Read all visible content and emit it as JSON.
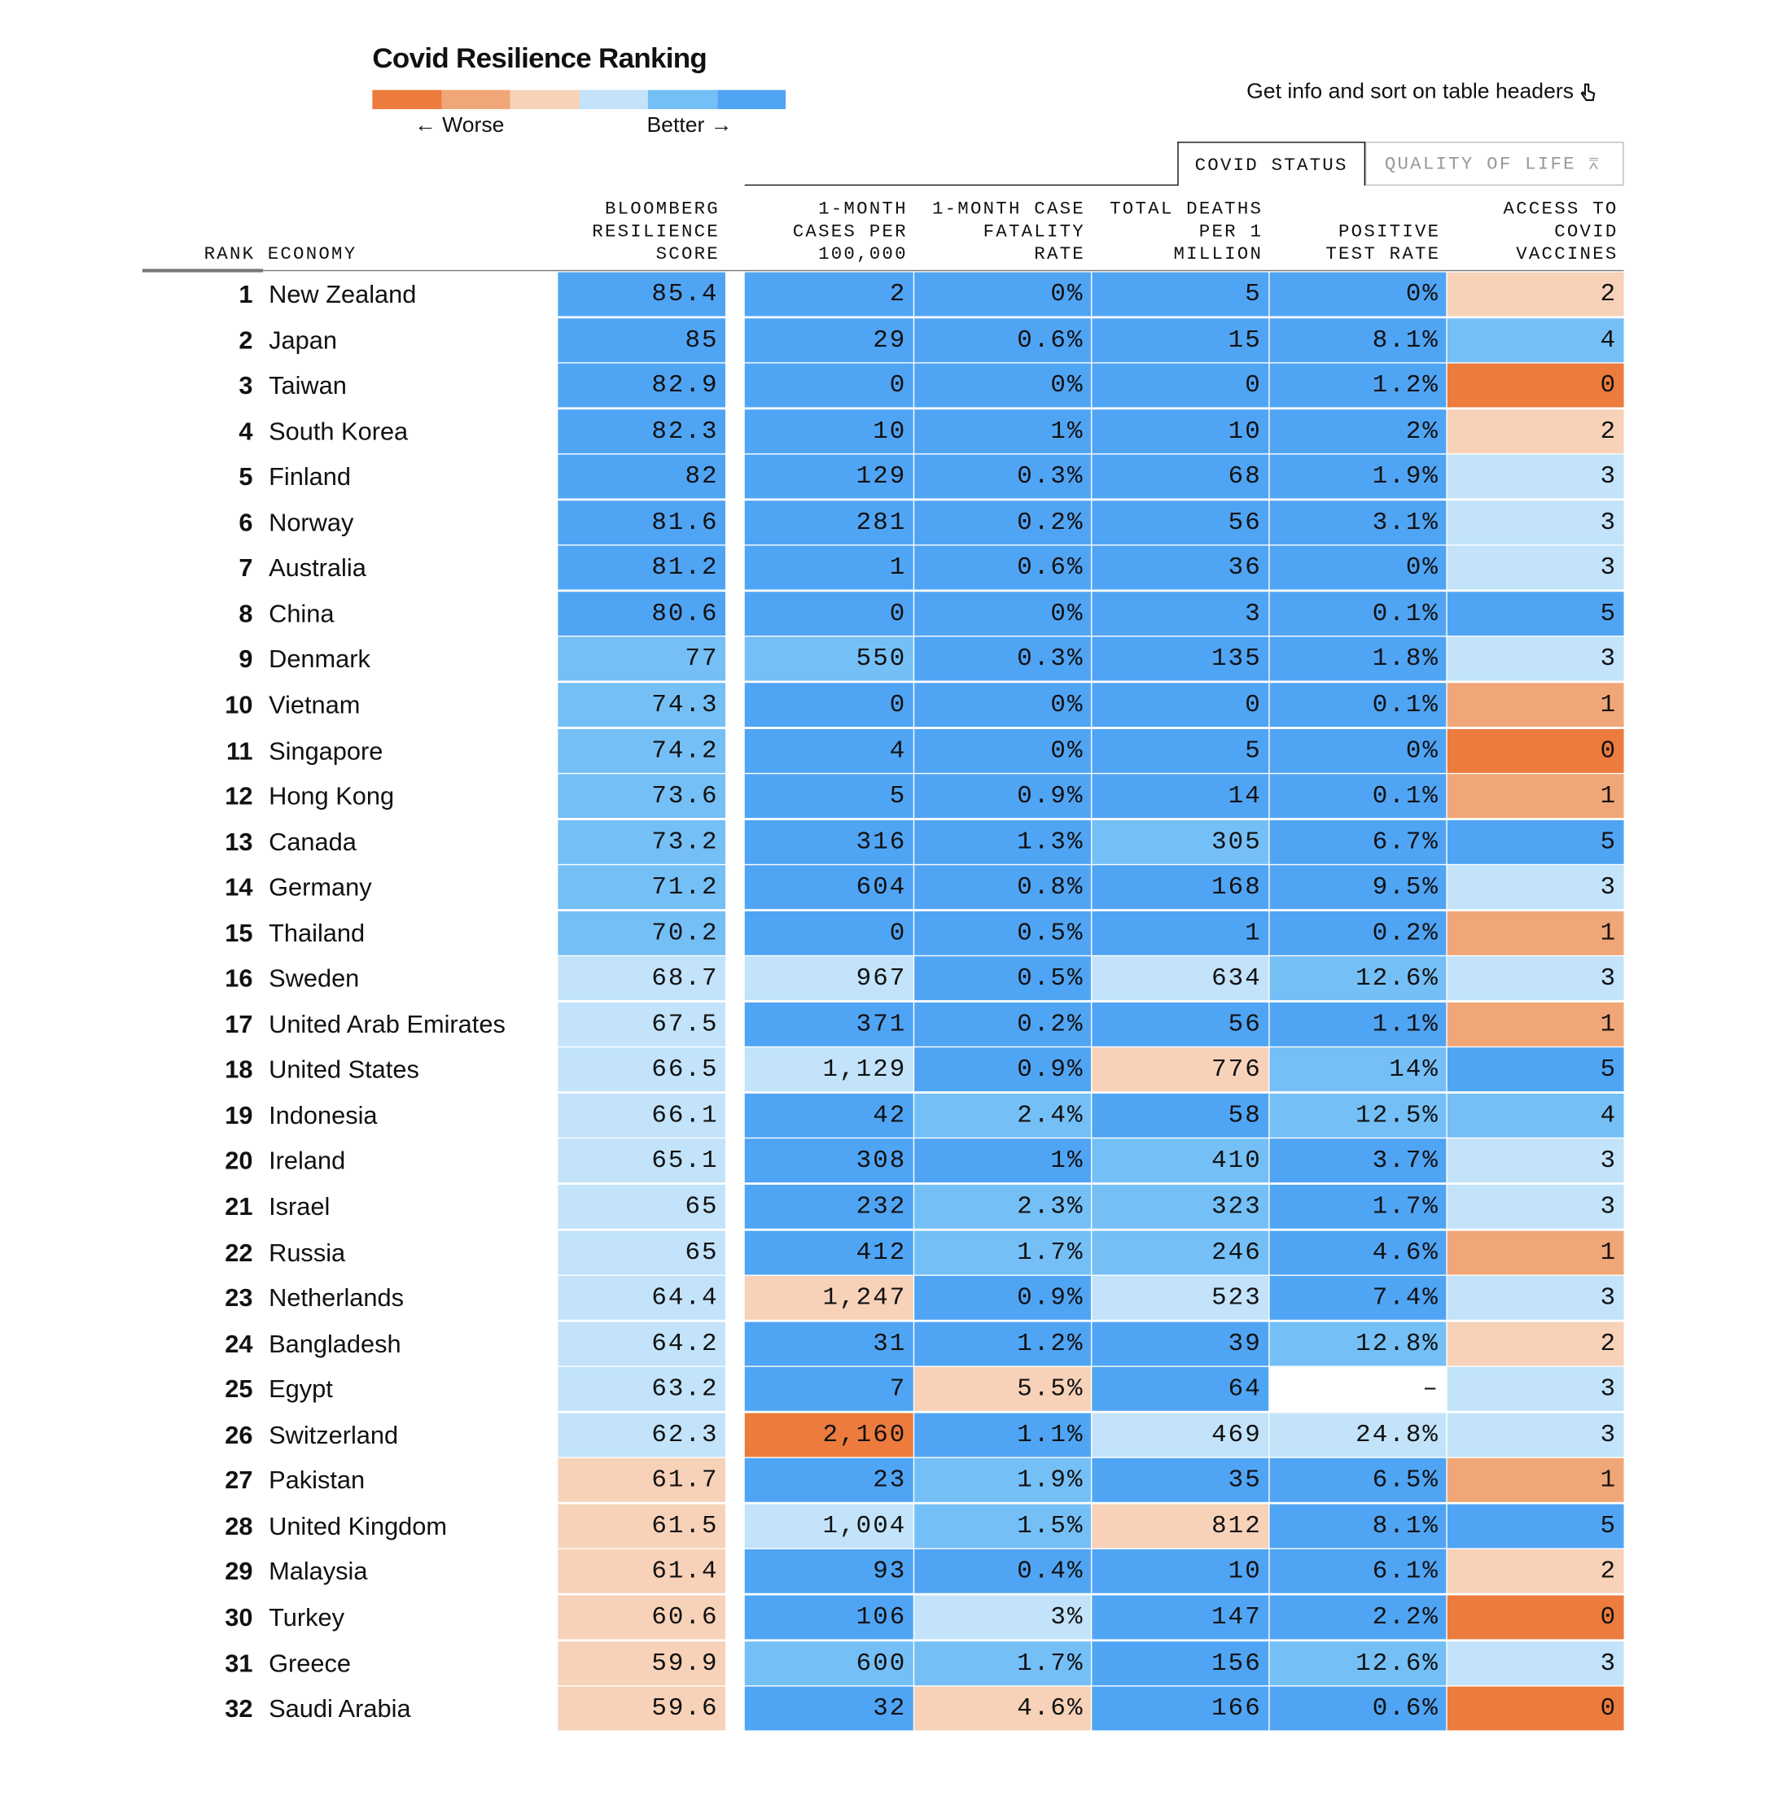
{
  "header": {
    "title": "Covid Resilience Ranking",
    "hint": "Get info and sort on table headers"
  },
  "legend": {
    "colors": [
      "#ec7b3d",
      "#f1a677",
      "#f7d2b9",
      "#c2e3fa",
      "#74bff6",
      "#50a4f4"
    ],
    "worse": "← Worse",
    "better": "Better →"
  },
  "tabs": [
    "COVID STATUS",
    "QUALITY OF LIFE"
  ],
  "table": {
    "rank_header": "RANK",
    "economy_header": "ECONOMY",
    "columns": [
      [
        "BLOOMBERG",
        "RESILIENCE",
        "SCORE"
      ],
      [
        "1-MONTH",
        "CASES PER",
        "100,000"
      ],
      [
        "1-MONTH CASE",
        "FATALITY",
        "RATE"
      ],
      [
        "TOTAL DEATHS",
        "PER 1",
        "MILLION"
      ],
      [
        "POSITIVE",
        "TEST RATE"
      ],
      [
        "ACCESS TO",
        "COVID",
        "VACCINES"
      ]
    ],
    "rows": [
      {
        "rank": "1",
        "economy": "New Zealand",
        "cells": [
          "85.4",
          "2",
          "0%",
          "5",
          "0%",
          "2"
        ],
        "levels": [
          5,
          5,
          5,
          5,
          5,
          2
        ]
      },
      {
        "rank": "2",
        "economy": "Japan",
        "cells": [
          "85",
          "29",
          "0.6%",
          "15",
          "8.1%",
          "4"
        ],
        "levels": [
          5,
          5,
          5,
          5,
          5,
          4
        ]
      },
      {
        "rank": "3",
        "economy": "Taiwan",
        "cells": [
          "82.9",
          "0",
          "0%",
          "0",
          "1.2%",
          "0"
        ],
        "levels": [
          5,
          5,
          5,
          5,
          5,
          0
        ]
      },
      {
        "rank": "4",
        "economy": "South Korea",
        "cells": [
          "82.3",
          "10",
          "1%",
          "10",
          "2%",
          "2"
        ],
        "levels": [
          5,
          5,
          5,
          5,
          5,
          2
        ]
      },
      {
        "rank": "5",
        "economy": "Finland",
        "cells": [
          "82",
          "129",
          "0.3%",
          "68",
          "1.9%",
          "3"
        ],
        "levels": [
          5,
          5,
          5,
          5,
          5,
          3
        ]
      },
      {
        "rank": "6",
        "economy": "Norway",
        "cells": [
          "81.6",
          "281",
          "0.2%",
          "56",
          "3.1%",
          "3"
        ],
        "levels": [
          5,
          5,
          5,
          5,
          5,
          3
        ]
      },
      {
        "rank": "7",
        "economy": "Australia",
        "cells": [
          "81.2",
          "1",
          "0.6%",
          "36",
          "0%",
          "3"
        ],
        "levels": [
          5,
          5,
          5,
          5,
          5,
          3
        ]
      },
      {
        "rank": "8",
        "economy": "China",
        "cells": [
          "80.6",
          "0",
          "0%",
          "3",
          "0.1%",
          "5"
        ],
        "levels": [
          5,
          5,
          5,
          5,
          5,
          5
        ]
      },
      {
        "rank": "9",
        "economy": "Denmark",
        "cells": [
          "77",
          "550",
          "0.3%",
          "135",
          "1.8%",
          "3"
        ],
        "levels": [
          4,
          4,
          5,
          5,
          5,
          3
        ]
      },
      {
        "rank": "10",
        "economy": "Vietnam",
        "cells": [
          "74.3",
          "0",
          "0%",
          "0",
          "0.1%",
          "1"
        ],
        "levels": [
          4,
          5,
          5,
          5,
          5,
          1
        ]
      },
      {
        "rank": "11",
        "economy": "Singapore",
        "cells": [
          "74.2",
          "4",
          "0%",
          "5",
          "0%",
          "0"
        ],
        "levels": [
          4,
          5,
          5,
          5,
          5,
          0
        ]
      },
      {
        "rank": "12",
        "economy": "Hong Kong",
        "cells": [
          "73.6",
          "5",
          "0.9%",
          "14",
          "0.1%",
          "1"
        ],
        "levels": [
          4,
          5,
          5,
          5,
          5,
          1
        ]
      },
      {
        "rank": "13",
        "economy": "Canada",
        "cells": [
          "73.2",
          "316",
          "1.3%",
          "305",
          "6.7%",
          "5"
        ],
        "levels": [
          4,
          5,
          5,
          4,
          5,
          5
        ]
      },
      {
        "rank": "14",
        "economy": "Germany",
        "cells": [
          "71.2",
          "604",
          "0.8%",
          "168",
          "9.5%",
          "3"
        ],
        "levels": [
          4,
          5,
          5,
          5,
          5,
          3
        ]
      },
      {
        "rank": "15",
        "economy": "Thailand",
        "cells": [
          "70.2",
          "0",
          "0.5%",
          "1",
          "0.2%",
          "1"
        ],
        "levels": [
          4,
          5,
          5,
          5,
          5,
          1
        ]
      },
      {
        "rank": "16",
        "economy": "Sweden",
        "cells": [
          "68.7",
          "967",
          "0.5%",
          "634",
          "12.6%",
          "3"
        ],
        "levels": [
          3,
          3,
          5,
          3,
          4,
          3
        ]
      },
      {
        "rank": "17",
        "economy": "United Arab Emirates",
        "cells": [
          "67.5",
          "371",
          "0.2%",
          "56",
          "1.1%",
          "1"
        ],
        "levels": [
          3,
          5,
          5,
          5,
          5,
          1
        ]
      },
      {
        "rank": "18",
        "economy": "United States",
        "cells": [
          "66.5",
          "1,129",
          "0.9%",
          "776",
          "14%",
          "5"
        ],
        "levels": [
          3,
          3,
          5,
          2,
          4,
          5
        ]
      },
      {
        "rank": "19",
        "economy": "Indonesia",
        "cells": [
          "66.1",
          "42",
          "2.4%",
          "58",
          "12.5%",
          "4"
        ],
        "levels": [
          3,
          5,
          4,
          5,
          4,
          4
        ]
      },
      {
        "rank": "20",
        "economy": "Ireland",
        "cells": [
          "65.1",
          "308",
          "1%",
          "410",
          "3.7%",
          "3"
        ],
        "levels": [
          3,
          5,
          5,
          4,
          5,
          3
        ]
      },
      {
        "rank": "21",
        "economy": "Israel",
        "cells": [
          "65",
          "232",
          "2.3%",
          "323",
          "1.7%",
          "3"
        ],
        "levels": [
          3,
          5,
          4,
          4,
          5,
          3
        ]
      },
      {
        "rank": "22",
        "economy": "Russia",
        "cells": [
          "65",
          "412",
          "1.7%",
          "246",
          "4.6%",
          "1"
        ],
        "levels": [
          3,
          5,
          4,
          4,
          5,
          1
        ]
      },
      {
        "rank": "23",
        "economy": "Netherlands",
        "cells": [
          "64.4",
          "1,247",
          "0.9%",
          "523",
          "7.4%",
          "3"
        ],
        "levels": [
          3,
          2,
          5,
          3,
          5,
          3
        ]
      },
      {
        "rank": "24",
        "economy": "Bangladesh",
        "cells": [
          "64.2",
          "31",
          "1.2%",
          "39",
          "12.8%",
          "2"
        ],
        "levels": [
          3,
          5,
          5,
          5,
          4,
          2
        ]
      },
      {
        "rank": "25",
        "economy": "Egypt",
        "cells": [
          "63.2",
          "7",
          "5.5%",
          "64",
          "–",
          "3"
        ],
        "levels": [
          3,
          5,
          2,
          5,
          null,
          3
        ]
      },
      {
        "rank": "26",
        "economy": "Switzerland",
        "cells": [
          "62.3",
          "2,160",
          "1.1%",
          "469",
          "24.8%",
          "3"
        ],
        "levels": [
          3,
          0,
          5,
          3,
          3,
          3
        ]
      },
      {
        "rank": "27",
        "economy": "Pakistan",
        "cells": [
          "61.7",
          "23",
          "1.9%",
          "35",
          "6.5%",
          "1"
        ],
        "levels": [
          2,
          5,
          4,
          5,
          5,
          1
        ]
      },
      {
        "rank": "28",
        "economy": "United Kingdom",
        "cells": [
          "61.5",
          "1,004",
          "1.5%",
          "812",
          "8.1%",
          "5"
        ],
        "levels": [
          2,
          3,
          4,
          2,
          5,
          5
        ]
      },
      {
        "rank": "29",
        "economy": "Malaysia",
        "cells": [
          "61.4",
          "93",
          "0.4%",
          "10",
          "6.1%",
          "2"
        ],
        "levels": [
          2,
          5,
          5,
          5,
          5,
          2
        ]
      },
      {
        "rank": "30",
        "economy": "Turkey",
        "cells": [
          "60.6",
          "106",
          "3%",
          "147",
          "2.2%",
          "0"
        ],
        "levels": [
          2,
          5,
          3,
          5,
          5,
          0
        ]
      },
      {
        "rank": "31",
        "economy": "Greece",
        "cells": [
          "59.9",
          "600",
          "1.7%",
          "156",
          "12.6%",
          "3"
        ],
        "levels": [
          2,
          4,
          4,
          5,
          4,
          3
        ]
      },
      {
        "rank": "32",
        "economy": "Saudi Arabia",
        "cells": [
          "59.6",
          "32",
          "4.6%",
          "166",
          "0.6%",
          "0"
        ],
        "levels": [
          2,
          5,
          2,
          5,
          5,
          0
        ]
      }
    ]
  }
}
